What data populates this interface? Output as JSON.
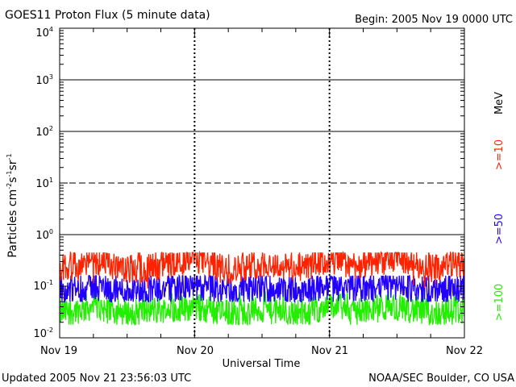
{
  "chart_data": {
    "type": "line",
    "title": "GOES11 Proton Flux (5 minute data)",
    "begin_label": "Begin: 2005 Nov 19 0000 UTC",
    "xlabel": "Universal Time",
    "ylabel": {
      "base": "Particles cm",
      "e1": "-2",
      "mid1": "s",
      "e2": "-1",
      "mid2": "sr",
      "e3": "-1"
    },
    "unit_label": "MeV",
    "y_scale": "log",
    "ylim": [
      0.01,
      10000
    ],
    "y_ticks": [
      {
        "base": "10",
        "exp": "-2"
      },
      {
        "base": "10",
        "exp": "-1"
      },
      {
        "base": "10",
        "exp": "0"
      },
      {
        "base": "10",
        "exp": "1"
      },
      {
        "base": "10",
        "exp": "2"
      },
      {
        "base": "10",
        "exp": "3"
      },
      {
        "base": "10",
        "exp": "4"
      }
    ],
    "x_ticks": [
      "Nov 19",
      "Nov 20",
      "Nov 21",
      "Nov 22"
    ],
    "xlim": [
      "2005-11-19 00:00",
      "2005-11-22 00:00"
    ],
    "threshold_lines": [
      {
        "y": 1,
        "style": "solid"
      },
      {
        "y": 10,
        "style": "dashed"
      },
      {
        "y": 100,
        "style": "solid"
      },
      {
        "y": 1000,
        "style": "solid"
      }
    ],
    "series": [
      {
        "name": ">=10",
        "color": "#ff2200",
        "typical_range": [
          0.09,
          0.45
        ],
        "x": [
          "2005-11-19 00:00",
          "2005-11-19 06:00",
          "2005-11-19 12:00",
          "2005-11-19 18:00",
          "2005-11-20 00:00",
          "2005-11-20 06:00",
          "2005-11-20 12:00",
          "2005-11-20 18:00",
          "2005-11-21 00:00",
          "2005-11-21 06:00",
          "2005-11-21 12:00",
          "2005-11-21 18:00",
          "2005-11-22 00:00"
        ],
        "values": [
          0.22,
          0.3,
          0.2,
          0.25,
          0.35,
          0.2,
          0.28,
          0.22,
          0.3,
          0.25,
          0.35,
          0.22,
          0.3
        ]
      },
      {
        "name": ">=50",
        "color": "#2200ff",
        "typical_range": [
          0.05,
          0.16
        ],
        "x": [
          "2005-11-19 00:00",
          "2005-11-19 06:00",
          "2005-11-19 12:00",
          "2005-11-19 18:00",
          "2005-11-20 00:00",
          "2005-11-20 06:00",
          "2005-11-20 12:00",
          "2005-11-20 18:00",
          "2005-11-21 00:00",
          "2005-11-21 06:00",
          "2005-11-21 12:00",
          "2005-11-21 18:00",
          "2005-11-22 00:00"
        ],
        "values": [
          0.08,
          0.1,
          0.08,
          0.09,
          0.1,
          0.08,
          0.09,
          0.08,
          0.1,
          0.09,
          0.1,
          0.08,
          0.09
        ]
      },
      {
        "name": ">=100",
        "color": "#22ee00",
        "typical_range": [
          0.018,
          0.08
        ],
        "x": [
          "2005-11-19 00:00",
          "2005-11-19 06:00",
          "2005-11-19 12:00",
          "2005-11-19 18:00",
          "2005-11-20 00:00",
          "2005-11-20 06:00",
          "2005-11-20 12:00",
          "2005-11-20 18:00",
          "2005-11-21 00:00",
          "2005-11-21 06:00",
          "2005-11-21 12:00",
          "2005-11-21 18:00",
          "2005-11-22 00:00"
        ],
        "values": [
          0.03,
          0.04,
          0.03,
          0.035,
          0.04,
          0.03,
          0.035,
          0.03,
          0.04,
          0.035,
          0.04,
          0.03,
          0.035
        ]
      }
    ]
  },
  "footer": {
    "updated": "Updated 2005 Nov 21 23:56:03 UTC",
    "credit": "NOAA/SEC Boulder, CO USA"
  }
}
